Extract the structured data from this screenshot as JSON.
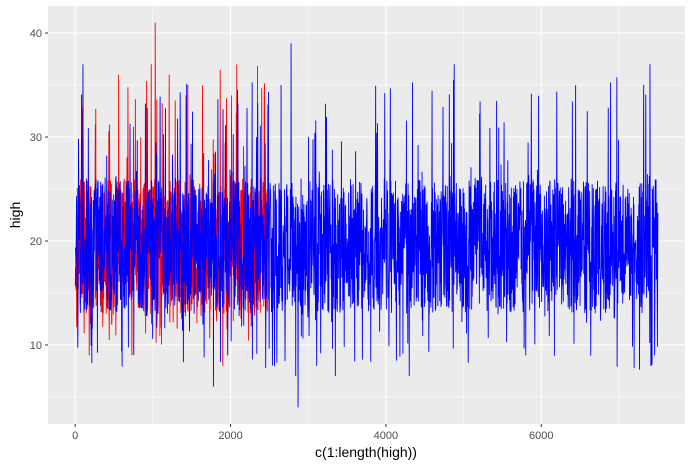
{
  "chart_data": {
    "type": "line",
    "xlabel": "c(1:length(high))",
    "ylabel": "high",
    "xlim": [
      -350,
      7850
    ],
    "ylim": [
      2.4,
      42.6
    ],
    "x_ticks": [
      0,
      2000,
      4000,
      6000
    ],
    "x_tick_labels": [
      "0",
      "2000",
      "4000",
      "6000"
    ],
    "y_ticks": [
      10,
      20,
      30,
      40
    ],
    "y_tick_labels": [
      "10",
      "20",
      "30",
      "40"
    ],
    "grid": true,
    "background": "#ebebeb",
    "series": [
      {
        "color": "#ff0000",
        "x_range": [
          1,
          2500
        ],
        "typical_range": [
          13,
          26
        ],
        "max": 41,
        "min": 8,
        "notable_points": [
          [
            1030,
            41
          ],
          [
            980,
            37
          ],
          [
            560,
            36
          ],
          [
            2010,
            34
          ],
          [
            1210,
            36
          ],
          [
            1450,
            35
          ],
          [
            730,
            9
          ],
          [
            1900,
            8
          ],
          [
            180,
            9
          ]
        ]
      },
      {
        "color": "#0000ff",
        "x_range": [
          1,
          7500
        ],
        "typical_range": [
          13,
          26
        ],
        "max": 39,
        "min": 4,
        "notable_points": [
          [
            2780,
            39
          ],
          [
            2870,
            4
          ],
          [
            1780,
            6
          ],
          [
            2840,
            7
          ],
          [
            4300,
            7
          ],
          [
            3350,
            7
          ],
          [
            7400,
            37
          ],
          [
            4880,
            37
          ],
          [
            100,
            37
          ],
          [
            5800,
            9
          ],
          [
            7460,
            9
          ]
        ]
      }
    ]
  }
}
